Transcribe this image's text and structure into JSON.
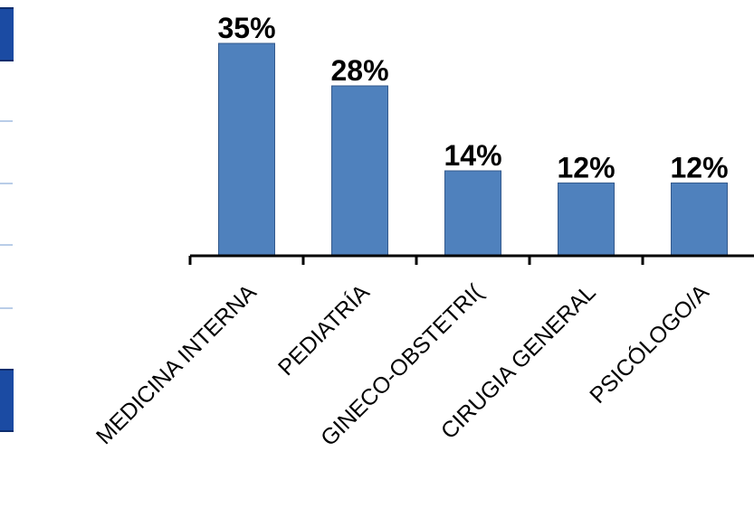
{
  "chart_data": {
    "type": "bar",
    "title": "",
    "xlabel": "",
    "ylabel": "",
    "categories": [
      "MEDICINA INTERNA",
      "PEDIATRÍA",
      "GINECO-OBSTETRI(",
      "CIRUGIA GENERAL",
      "PSICÓLOGO/A"
    ],
    "values": [
      35,
      28,
      14,
      12,
      12
    ],
    "data_labels": [
      "35%",
      "28%",
      "14%",
      "12%",
      "12%"
    ],
    "ylim": [
      0,
      35
    ],
    "grid": false,
    "legend": "none",
    "colors": {
      "bar": "#4f81bd",
      "bar_edge": "#33598c",
      "axis": "#000000"
    }
  },
  "decor": {
    "left_strip_color": "#1b4ba3"
  }
}
